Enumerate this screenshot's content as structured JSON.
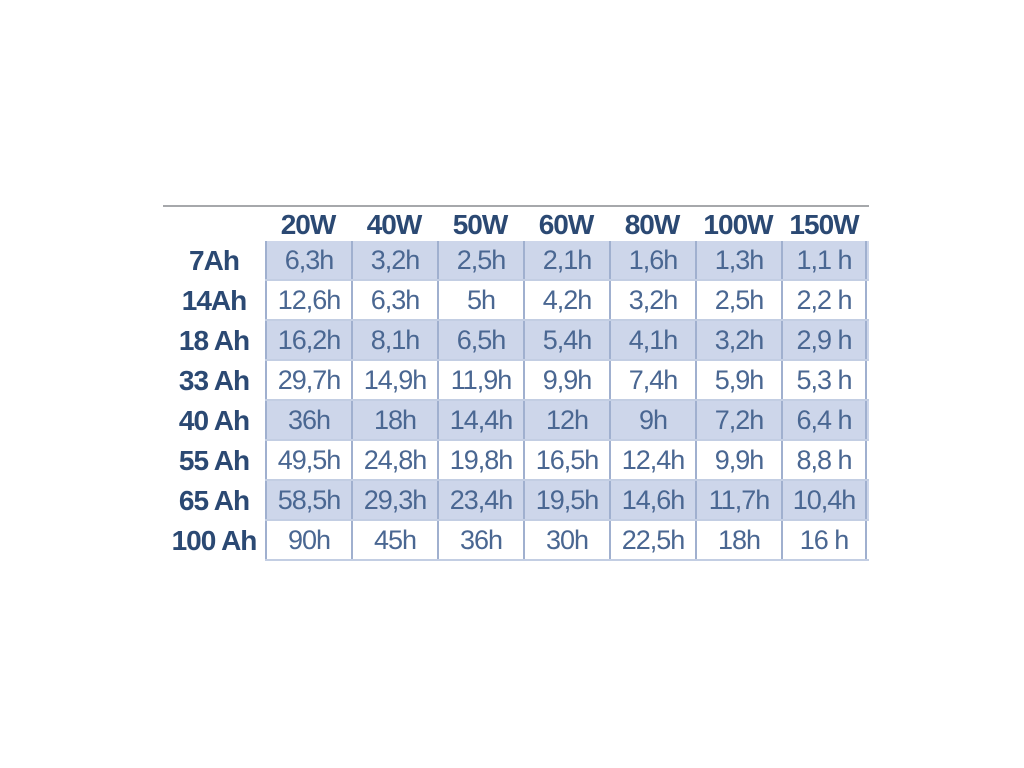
{
  "chart_data": {
    "type": "table",
    "columns": [
      "20W",
      "40W",
      "50W",
      "60W",
      "80W",
      "100W",
      "150W"
    ],
    "rows": [
      {
        "label": "7Ah",
        "shaded": true,
        "values": [
          "6,3h",
          "3,2h",
          "2,5h",
          "2,1h",
          "1,6h",
          "1,3h",
          "1,1 h"
        ]
      },
      {
        "label": "14Ah",
        "shaded": false,
        "values": [
          "12,6h",
          "6,3h",
          "5h",
          "4,2h",
          "3,2h",
          "2,5h",
          "2,2 h"
        ]
      },
      {
        "label": "18 Ah",
        "shaded": true,
        "values": [
          "16,2h",
          "8,1h",
          "6,5h",
          "5,4h",
          "4,1h",
          "3,2h",
          "2,9 h"
        ]
      },
      {
        "label": "33 Ah",
        "shaded": false,
        "values": [
          "29,7h",
          "14,9h",
          "11,9h",
          "9,9h",
          "7,4h",
          "5,9h",
          "5,3 h"
        ]
      },
      {
        "label": "40 Ah",
        "shaded": true,
        "values": [
          "36h",
          "18h",
          "14,4h",
          "12h",
          "9h",
          "7,2h",
          "6,4 h"
        ]
      },
      {
        "label": "55 Ah",
        "shaded": false,
        "values": [
          "49,5h",
          "24,8h",
          "19,8h",
          "16,5h",
          "12,4h",
          "9,9h",
          "8,8 h"
        ]
      },
      {
        "label": "65 Ah",
        "shaded": true,
        "values": [
          "58,5h",
          "29,3h",
          "23,4h",
          "19,5h",
          "14,6h",
          "11,7h",
          "10,4h"
        ]
      },
      {
        "label": "100 Ah",
        "shaded": false,
        "values": [
          "90h",
          "45h",
          "36h",
          "30h",
          "22,5h",
          "18h",
          "16 h"
        ]
      }
    ],
    "colors": {
      "header_text": "#2b4973",
      "cell_text": "#4a6792",
      "highlight_row_bg": "#cdd6ea",
      "plain_row_bg": "#ffffff",
      "border_vertical": "#a0b0cf",
      "border_horizontal": "#c3cee3",
      "data_area_edge": "#93a3c4",
      "header_top_line": "#a6a8ab"
    }
  }
}
